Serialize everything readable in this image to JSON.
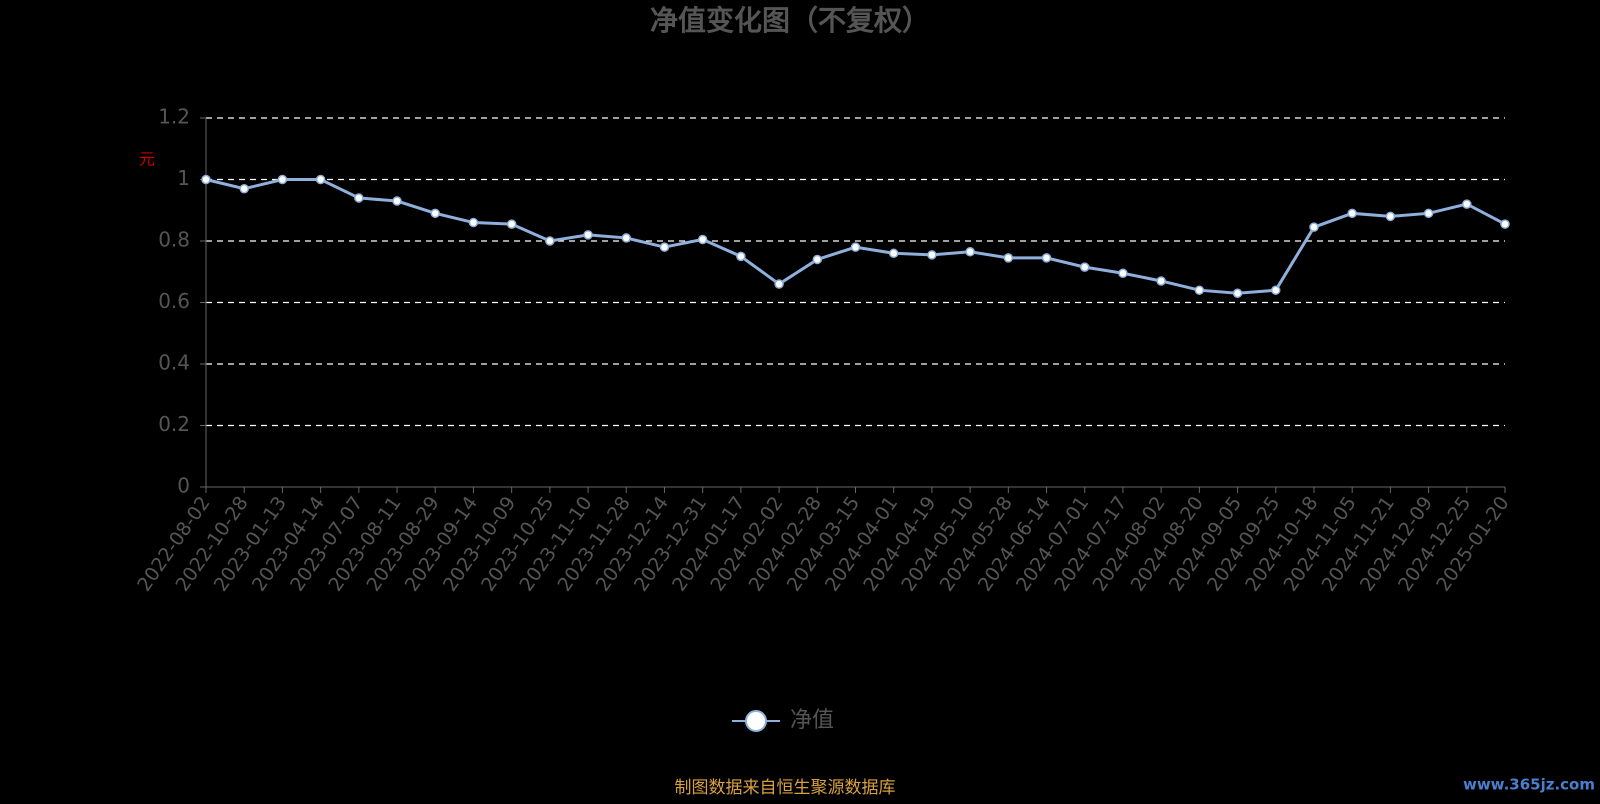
{
  "chart_data": {
    "type": "line",
    "title": "净值变化图（不复权）",
    "y_label": "元",
    "categories": [
      "2022-08-02",
      "2022-10-28",
      "2023-01-13",
      "2023-04-14",
      "2023-07-07",
      "2023-08-11",
      "2023-08-29",
      "2023-09-14",
      "2023-10-09",
      "2023-10-25",
      "2023-11-10",
      "2023-11-28",
      "2023-12-14",
      "2023-12-31",
      "2024-01-17",
      "2024-02-02",
      "2024-02-28",
      "2024-03-15",
      "2024-04-01",
      "2024-04-19",
      "2024-05-10",
      "2024-05-28",
      "2024-06-14",
      "2024-07-01",
      "2024-07-17",
      "2024-08-02",
      "2024-08-20",
      "2024-09-05",
      "2024-09-25",
      "2024-10-18",
      "2024-11-05",
      "2024-11-21",
      "2024-12-09",
      "2024-12-25",
      "2025-01-20"
    ],
    "series": [
      {
        "name": "净值",
        "color": "#8fb0dc",
        "values": [
          1.0,
          0.97,
          1.0,
          1.0,
          0.94,
          0.93,
          0.89,
          0.86,
          0.855,
          0.8,
          0.82,
          0.81,
          0.78,
          0.805,
          0.75,
          0.66,
          0.74,
          0.78,
          0.76,
          0.755,
          0.765,
          0.745,
          0.745,
          0.715,
          0.695,
          0.67,
          0.64,
          0.63,
          0.64,
          0.845,
          0.89,
          0.88,
          0.89,
          0.92,
          0.855
        ]
      }
    ],
    "ylim": [
      0,
      1.2
    ],
    "yticks": [
      0,
      0.2,
      0.4,
      0.6,
      0.8,
      1,
      1.2
    ],
    "grid": true,
    "legend": "bottom",
    "source": "制图数据来自恒生聚源数据库",
    "watermark": "www.365jz.com"
  }
}
